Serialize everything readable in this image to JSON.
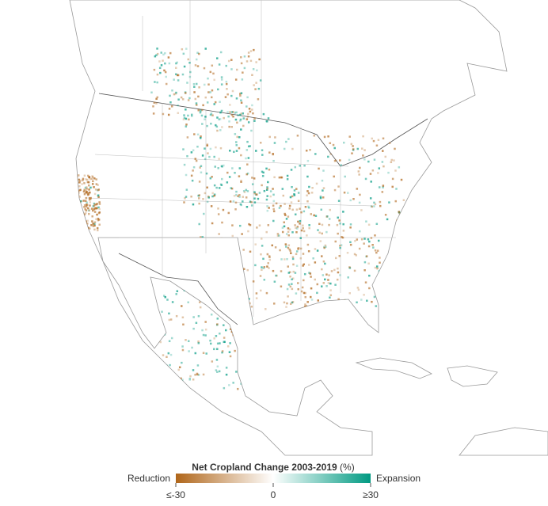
{
  "legend": {
    "title": "Net Cropland Change 2003-2019",
    "unit": "(%)",
    "left_label": "Reduction",
    "right_label": "Expansion",
    "range": [
      -30,
      30
    ],
    "ticks": [
      {
        "value": -30,
        "label": "≤-30"
      },
      0,
      {
        "value": 30,
        "label": "≥30"
      }
    ],
    "colors": [
      "#b0661a",
      "#ffffff",
      "#009a82"
    ]
  }
}
